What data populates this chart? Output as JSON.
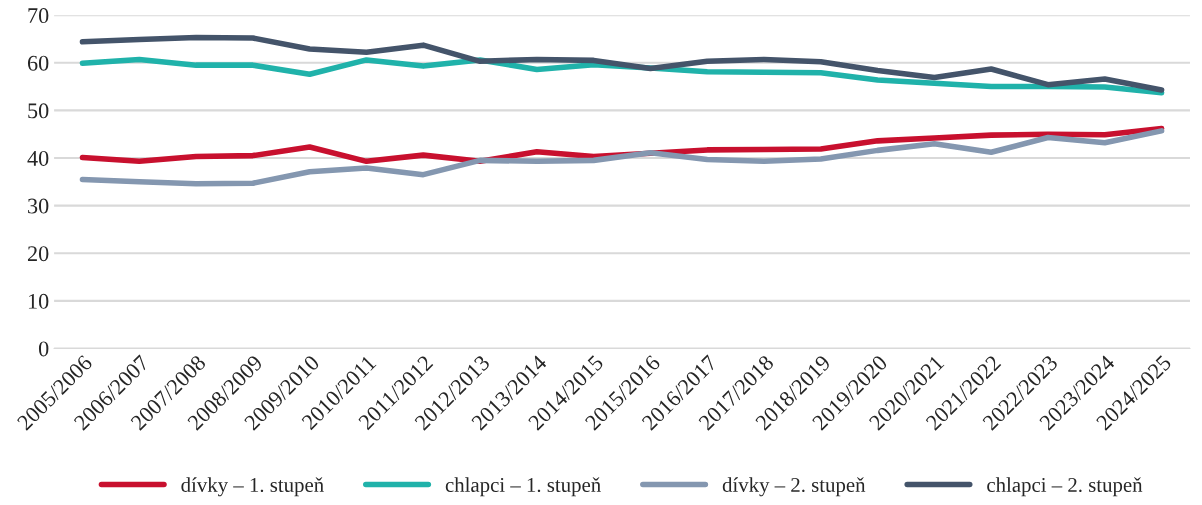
{
  "chart_data": {
    "type": "line",
    "categories": [
      "2005/2006",
      "2006/2007",
      "2007/2008",
      "2008/2009",
      "2009/2010",
      "2010/2011",
      "2011/2012",
      "2012/2013",
      "2013/2014",
      "2014/2015",
      "2015/2016",
      "2016/2017",
      "2017/2018",
      "2018/2019",
      "2019/2020",
      "2020/2021",
      "2021/2022",
      "2022/2023",
      "2023/2024",
      "2024/2025"
    ],
    "series": [
      {
        "name": "dívky – 1. stupeň",
        "color": "#c8102e",
        "values": [
          40.1,
          39.3,
          40.3,
          40.5,
          42.3,
          39.3,
          40.6,
          39.3,
          41.3,
          40.3,
          41.0,
          41.7,
          41.8,
          41.9,
          43.6,
          44.2,
          44.8,
          45.0,
          44.9,
          46.2
        ]
      },
      {
        "name": "chlapci – 1. stupeň",
        "color": "#20b2aa",
        "values": [
          59.9,
          60.7,
          59.5,
          59.5,
          57.6,
          60.6,
          59.3,
          60.6,
          58.6,
          59.6,
          58.9,
          58.1,
          58.0,
          57.9,
          56.4,
          55.7,
          55.0,
          55.0,
          54.9,
          53.7
        ]
      },
      {
        "name": "dívky – 2. stupeň",
        "color": "#8497b0",
        "values": [
          35.5,
          35.0,
          34.6,
          34.7,
          37.1,
          37.9,
          36.5,
          39.5,
          39.3,
          39.5,
          41.1,
          39.7,
          39.3,
          39.8,
          41.6,
          43.0,
          41.2,
          44.3,
          43.2,
          45.7
        ]
      },
      {
        "name": "chlapci – 2. stupeň",
        "color": "#44546a",
        "values": [
          64.4,
          64.9,
          65.3,
          65.2,
          62.9,
          62.2,
          63.7,
          60.3,
          60.7,
          60.5,
          58.8,
          60.3,
          60.7,
          60.2,
          58.4,
          56.9,
          58.7,
          55.4,
          56.6,
          54.3
        ]
      }
    ],
    "ylim": [
      0,
      70
    ],
    "yticks": [
      0,
      10,
      20,
      30,
      40,
      50,
      60,
      70
    ],
    "grid": "y",
    "legend": "bottom",
    "marker": "none",
    "line_style": "solid"
  }
}
